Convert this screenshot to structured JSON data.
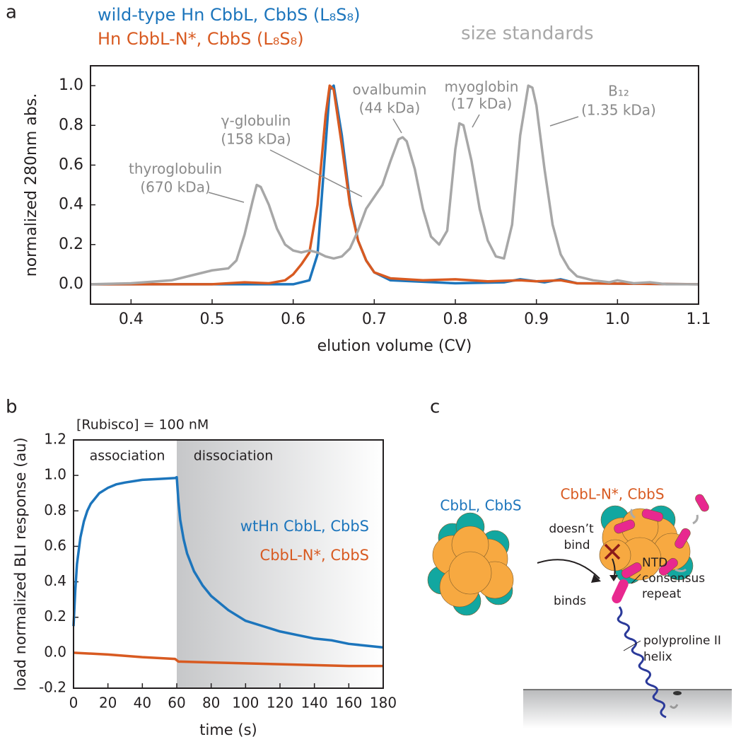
{
  "panel_labels": [
    "a",
    "b",
    "c"
  ],
  "chart_data": [
    {
      "type": "line",
      "xlabel": "elution volume (CV)",
      "ylabel": "normalized 280nm abs.",
      "xlim": [
        0.35,
        1.1
      ],
      "ylim": [
        -0.1,
        1.1
      ],
      "xticks": [
        0.4,
        0.5,
        0.6,
        0.7,
        0.8,
        0.9,
        {
          "value": 1.0,
          "label": "1.0"
        },
        1.1
      ],
      "yticks": [
        {
          "value": 0,
          "label": "0.0"
        },
        0.2,
        0.4,
        0.6,
        0.8,
        {
          "value": 1.0,
          "label": "1.0"
        }
      ],
      "series": [
        {
          "name": "wild-type Hn CbbL, CbbS (L₈S₈)",
          "color": "#1c75bc",
          "x": [
            0.35,
            0.6,
            0.62,
            0.63,
            0.64,
            0.645,
            0.65,
            0.66,
            0.67,
            0.68,
            0.69,
            0.7,
            0.72,
            0.8,
            0.86,
            0.88,
            0.9,
            0.91,
            0.93,
            0.95,
            1.1
          ],
          "values": [
            0,
            0,
            0.02,
            0.15,
            0.7,
            0.98,
            1.0,
            0.75,
            0.42,
            0.22,
            0.12,
            0.06,
            0.02,
            0.005,
            0.01,
            0.025,
            0.015,
            0.01,
            0.025,
            0.005,
            0
          ]
        },
        {
          "name": "Hn CbbL-N*, CbbS (L₈S₈)",
          "color": "#d85a21",
          "x": [
            0.35,
            0.5,
            0.54,
            0.57,
            0.59,
            0.6,
            0.61,
            0.62,
            0.63,
            0.64,
            0.645,
            0.65,
            0.66,
            0.67,
            0.68,
            0.69,
            0.7,
            0.72,
            0.76,
            0.8,
            0.84,
            0.88,
            0.9,
            0.93,
            0.95,
            1.1
          ],
          "values": [
            0,
            0,
            0.01,
            0.005,
            0.02,
            0.05,
            0.1,
            0.16,
            0.4,
            0.85,
            1.0,
            0.98,
            0.7,
            0.4,
            0.22,
            0.12,
            0.06,
            0.03,
            0.02,
            0.025,
            0.015,
            0.02,
            0.015,
            0.02,
            0.005,
            0
          ]
        },
        {
          "name": "size standards",
          "color": "#a7a7a7",
          "x": [
            0.35,
            0.4,
            0.45,
            0.48,
            0.5,
            0.52,
            0.53,
            0.54,
            0.55,
            0.555,
            0.56,
            0.57,
            0.58,
            0.59,
            0.6,
            0.61,
            0.62,
            0.63,
            0.64,
            0.65,
            0.66,
            0.67,
            0.68,
            0.69,
            0.7,
            0.71,
            0.72,
            0.73,
            0.735,
            0.74,
            0.75,
            0.76,
            0.77,
            0.78,
            0.79,
            0.8,
            0.805,
            0.81,
            0.82,
            0.83,
            0.84,
            0.85,
            0.86,
            0.87,
            0.88,
            0.89,
            0.895,
            0.9,
            0.91,
            0.92,
            0.93,
            0.94,
            0.95,
            0.97,
            0.99,
            1.0,
            1.02,
            1.04,
            1.06,
            1.1
          ],
          "values": [
            0,
            0.005,
            0.02,
            0.05,
            0.07,
            0.08,
            0.12,
            0.25,
            0.42,
            0.5,
            0.49,
            0.4,
            0.28,
            0.2,
            0.17,
            0.16,
            0.17,
            0.16,
            0.14,
            0.13,
            0.14,
            0.18,
            0.27,
            0.38,
            0.44,
            0.5,
            0.62,
            0.73,
            0.74,
            0.72,
            0.58,
            0.38,
            0.24,
            0.2,
            0.27,
            0.68,
            0.81,
            0.8,
            0.62,
            0.38,
            0.22,
            0.14,
            0.13,
            0.3,
            0.75,
            1.0,
            0.99,
            0.9,
            0.58,
            0.3,
            0.15,
            0.08,
            0.04,
            0.02,
            0.01,
            0.02,
            0.005,
            0.01,
            0,
            0
          ]
        }
      ],
      "annotations": [
        {
          "text": [
            "thyroglobulin",
            "(670 kDa)"
          ]
        },
        {
          "text": [
            "γ-globulin",
            "(158 kDa)"
          ]
        },
        {
          "text": [
            "ovalbumin",
            "(44 kDa)"
          ]
        },
        {
          "text": [
            "myoglobin",
            "(17 kDa)"
          ]
        },
        {
          "text": [
            "B₁₂",
            "(1.35 kDa)"
          ]
        }
      ]
    },
    {
      "type": "line",
      "xlabel": "time (s)",
      "ylabel": "load normalized BLI response (au)",
      "xlim": [
        0,
        180
      ],
      "ylim": [
        -0.2,
        1.2
      ],
      "xticks": [
        0,
        20,
        40,
        60,
        80,
        100,
        120,
        140,
        160,
        180
      ],
      "yticks": [
        -0.2,
        {
          "value": 0,
          "label": "0.0"
        },
        0.2,
        0.4,
        0.6,
        0.8,
        {
          "value": 1.0,
          "label": "1.0"
        },
        1.2
      ],
      "shaded_region": [
        60,
        180
      ],
      "series": [
        {
          "name": "wtHn CbbL, CbbS",
          "color": "#1c75bc",
          "x": [
            0,
            1,
            2,
            4,
            6,
            8,
            10,
            15,
            20,
            25,
            30,
            40,
            50,
            59,
            60,
            61,
            62,
            64,
            66,
            70,
            75,
            80,
            90,
            100,
            110,
            120,
            130,
            140,
            150,
            160,
            170,
            180
          ],
          "values": [
            0.15,
            0.35,
            0.5,
            0.65,
            0.74,
            0.8,
            0.84,
            0.9,
            0.93,
            0.95,
            0.96,
            0.975,
            0.98,
            0.985,
            0.99,
            0.85,
            0.75,
            0.64,
            0.56,
            0.46,
            0.38,
            0.32,
            0.24,
            0.18,
            0.15,
            0.12,
            0.1,
            0.08,
            0.07,
            0.05,
            0.04,
            0.03
          ]
        },
        {
          "name": "CbbL-N*, CbbS",
          "color": "#d85a21",
          "x": [
            0,
            20,
            40,
            59,
            61,
            80,
            100,
            120,
            140,
            160,
            180
          ],
          "values": [
            0,
            -0.01,
            -0.025,
            -0.035,
            -0.05,
            -0.055,
            -0.06,
            -0.065,
            -0.07,
            -0.075,
            -0.075
          ]
        }
      ],
      "annotations": [
        {
          "text": [
            "[Rubisco] = 100 nM"
          ]
        },
        {
          "text": [
            "association"
          ]
        },
        {
          "text": [
            "dissociation"
          ]
        }
      ]
    }
  ],
  "diagram": {
    "wild_type_label": "CbbL, CbbS",
    "mutant_label": "CbbL-N*, CbbS",
    "no_binding": [
      "doesn’t",
      "bind"
    ],
    "binding": "binds",
    "repeat_label": [
      "NTD",
      "consensus",
      "repeat"
    ],
    "helix_label": [
      "polyproline II",
      "helix"
    ]
  }
}
